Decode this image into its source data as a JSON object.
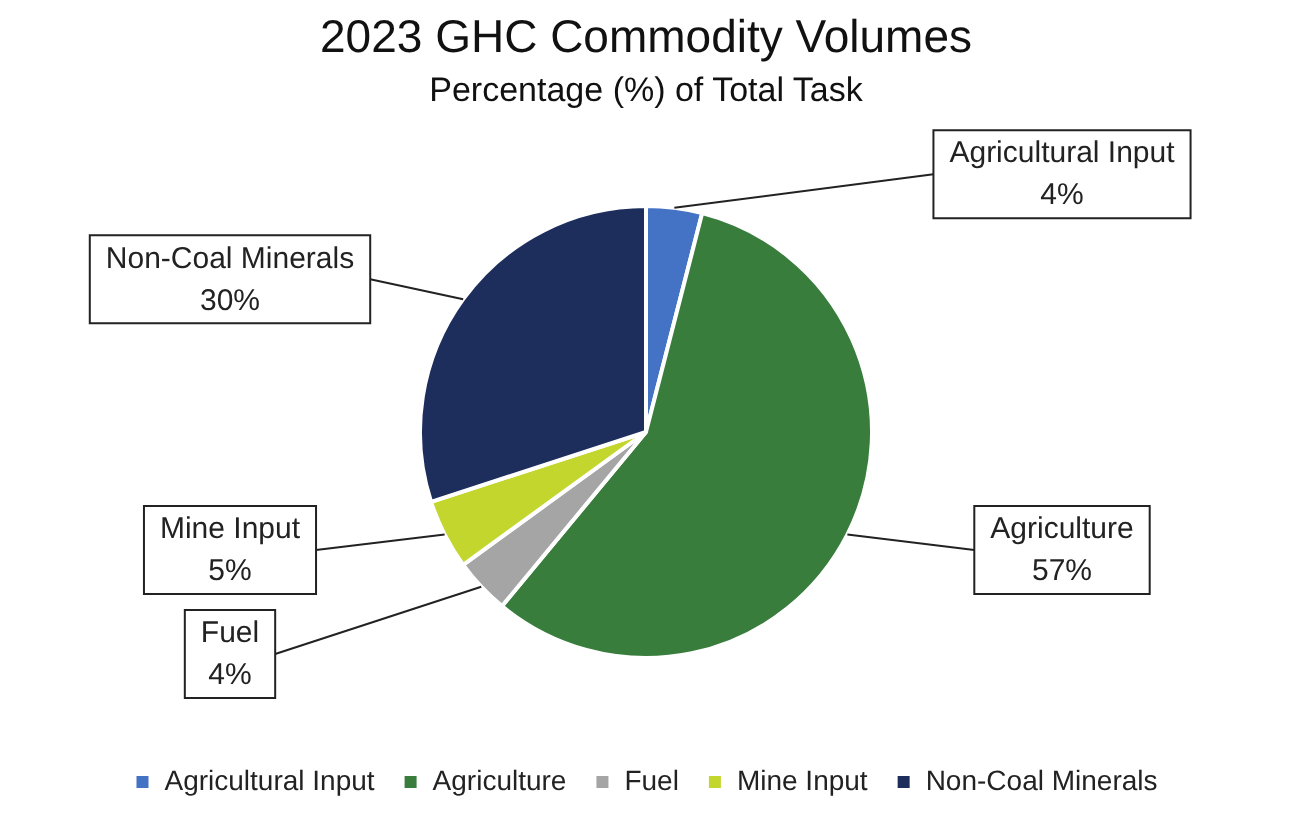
{
  "chart_data": {
    "type": "pie",
    "title": "2023 GHC Commodity Volumes",
    "subtitle": "Percentage (%) of Total Task",
    "categories": [
      "Agricultural Input",
      "Agriculture",
      "Fuel",
      "Mine Input",
      "Non-Coal Minerals"
    ],
    "values": [
      4,
      57,
      4,
      5,
      30
    ],
    "value_labels": [
      "4%",
      "57%",
      "4%",
      "5%",
      "30%"
    ],
    "colors": [
      "#4472c4",
      "#387d3c",
      "#a5a5a5",
      "#c3d62e",
      "#1d2d5c"
    ],
    "legend": "bottom"
  }
}
